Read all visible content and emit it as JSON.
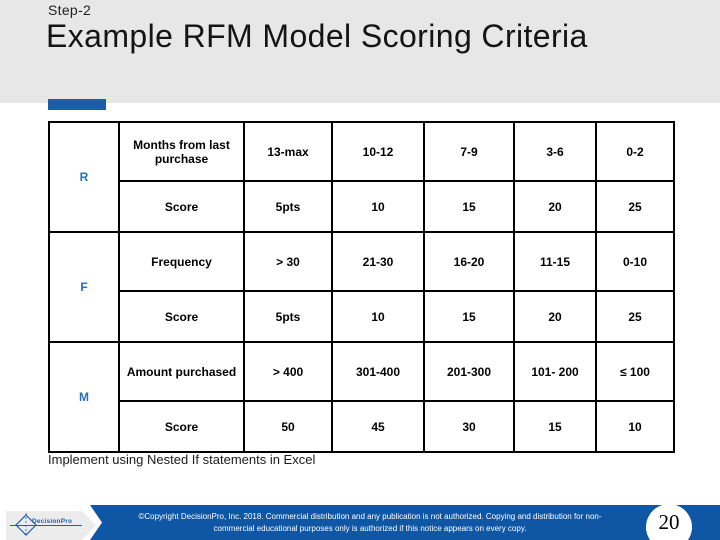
{
  "slide": {
    "step_label": "Step-2",
    "title": "Example RFM Model Scoring Criteria",
    "note": "Implement using Nested If statements in Excel",
    "page_number": "20"
  },
  "table": {
    "groups": [
      {
        "key": "R",
        "rows": [
          {
            "label": "Months from last purchase",
            "values": [
              "13-max",
              "10-12",
              "7-9",
              "3-6",
              "0-2"
            ]
          },
          {
            "label": "Score",
            "values": [
              "5pts",
              "10",
              "15",
              "20",
              "25"
            ]
          }
        ]
      },
      {
        "key": "F",
        "rows": [
          {
            "label": "Frequency",
            "values": [
              "> 30",
              "21-30",
              "16-20",
              "11-15",
              "0-10"
            ]
          },
          {
            "label": "Score",
            "values": [
              "5pts",
              "10",
              "15",
              "20",
              "25"
            ]
          }
        ]
      },
      {
        "key": "M",
        "rows": [
          {
            "label": "Amount purchased",
            "values": [
              "> 400",
              "301-400",
              "201-300",
              "101- 200",
              "≤ 100"
            ]
          },
          {
            "label": "Score",
            "values": [
              "50",
              "45",
              "30",
              "15",
              "10"
            ]
          }
        ]
      }
    ]
  },
  "footer": {
    "logo_text": "DecisionPro",
    "copyright": "©Copyright DecisionPro, Inc. 2018. Commercial distribution and any publication is not authorized. Copying and distribution for non-commercial educational purposes only is authorized if this notice appears on every copy."
  },
  "colors": {
    "header_gray": "#e7e7e7",
    "accent_blue": "#1d5ca8",
    "rfm_blue": "#2672b0",
    "footer_blue": "#0f56a4",
    "logo_blue": "#2060a8"
  }
}
